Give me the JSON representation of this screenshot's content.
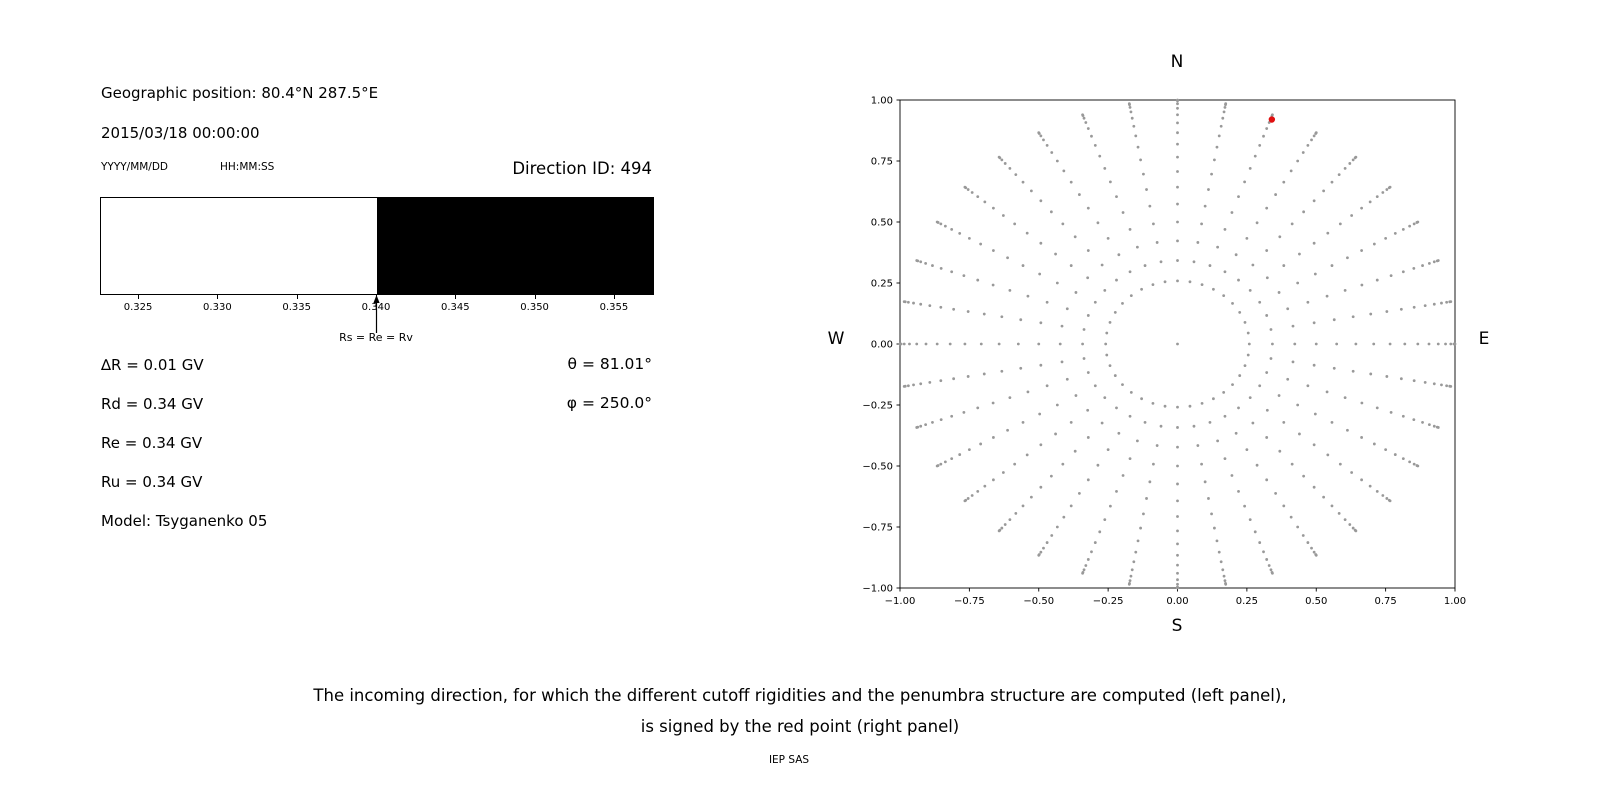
{
  "page": {
    "background": "#ffffff",
    "caption_line1": "The incoming direction, for which the different cutoff rigidities and the penumbra structure are computed (left panel),",
    "caption_line2": "is signed by the red point (right panel)",
    "credit": "IEP SAS"
  },
  "left_panel": {
    "geo_position": "Geographic position: 80.4°N 287.5°E",
    "datetime": "2015/03/18 00:00:00",
    "date_format_label": "YYYY/MM/DD",
    "time_format_label": "HH:MM:SS",
    "direction_id": "Direction ID: 494",
    "delta_r": "∆R = 0.01 GV",
    "rd": "Rd = 0.34 GV",
    "re": "Re = 0.34 GV",
    "ru": "Ru = 0.34 GV",
    "model": "Model: Tsyganenko 05",
    "theta": "θ = 81.01°",
    "phi": "φ = 250.0°"
  },
  "chart_data": [
    {
      "type": "bar",
      "subtype": "penumbra_regions",
      "xlim": [
        0.3226,
        0.3574
      ],
      "xtick_values": [
        0.325,
        0.33,
        0.335,
        0.34,
        0.345,
        0.35,
        0.355
      ],
      "xtick_labels": [
        "0.325",
        "0.330",
        "0.335",
        "0.340",
        "0.345",
        "0.350",
        "0.355"
      ],
      "regions": [
        {
          "from": 0.3226,
          "to": 0.34,
          "color": "#ffffff"
        },
        {
          "from": 0.34,
          "to": 0.3574,
          "color": "#000000"
        }
      ],
      "annotation": {
        "x": 0.34,
        "label": "Rs = Re = Rv"
      }
    },
    {
      "type": "scatter",
      "xlim": [
        -1,
        1
      ],
      "ylim": [
        -1,
        1
      ],
      "grid": false,
      "xtick_values": [
        -1,
        -0.75,
        -0.5,
        -0.25,
        0,
        0.25,
        0.5,
        0.75,
        1
      ],
      "xtick_labels": [
        "−1.00",
        "−0.75",
        "−0.50",
        "−0.25",
        "0.00",
        "0.25",
        "0.50",
        "0.75",
        "1.00"
      ],
      "ytick_values": [
        1,
        0.75,
        0.5,
        0.25,
        0,
        -0.25,
        -0.5,
        -0.75,
        -1
      ],
      "ytick_labels": [
        "1.00",
        "0.75",
        "0.50",
        "0.25",
        "0.00",
        "−0.25",
        "−0.50",
        "−0.75",
        "−1.00"
      ],
      "compass": {
        "top": "N",
        "bottom": "S",
        "left": "W",
        "right": "E"
      },
      "series": [
        {
          "name": "direction-grid",
          "color": "#999999",
          "marker_size": 1.4,
          "generator": {
            "azimuth_deg": {
              "start": 0,
              "step": 10,
              "count": 36
            },
            "zenith_deg": {
              "start": 15,
              "step": 5,
              "stop": 90
            },
            "radius": "sin(zenith)",
            "include_center": true
          }
        },
        {
          "name": "selected-direction",
          "color": "#e01010",
          "marker_size": 3.2,
          "points": [
            [
              0.34,
              0.92
            ]
          ]
        }
      ]
    }
  ]
}
